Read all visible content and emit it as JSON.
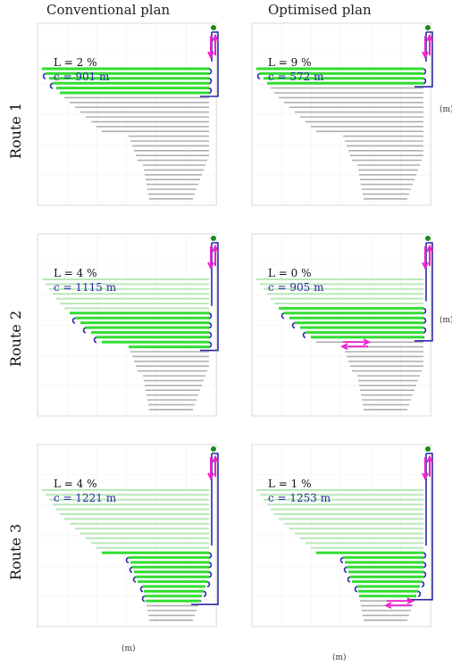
{
  "headers": {
    "left": "Conventional plan",
    "right": "Optimised plan"
  },
  "units": {
    "axis": "(m)"
  },
  "routes": [
    {
      "label": "Route 1",
      "conventional": {
        "L": "L = 2 %",
        "c": "c = 901 m"
      },
      "optimised": {
        "L": "L = 9 %",
        "c": "c = 572 m"
      }
    },
    {
      "label": "Route 2",
      "conventional": {
        "L": "L = 4 %",
        "c": "c = 1115 m"
      },
      "optimised": {
        "L": "L = 0 %",
        "c": "c = 905 m"
      }
    },
    {
      "label": "Route 3",
      "conventional": {
        "L": "L = 4 %",
        "c": "c = 1221 m"
      },
      "optimised": {
        "L": "L = 1 %",
        "c": "c = 1253 m"
      }
    }
  ],
  "colors": {
    "route": "#2a2aa8",
    "active": "#33dd33",
    "inactive": "#b0b0b0",
    "visited": "#b8e8b8",
    "arrow": "#ee22cc",
    "start": "#1a8a1a",
    "text_c": "#2a2aa8"
  }
}
